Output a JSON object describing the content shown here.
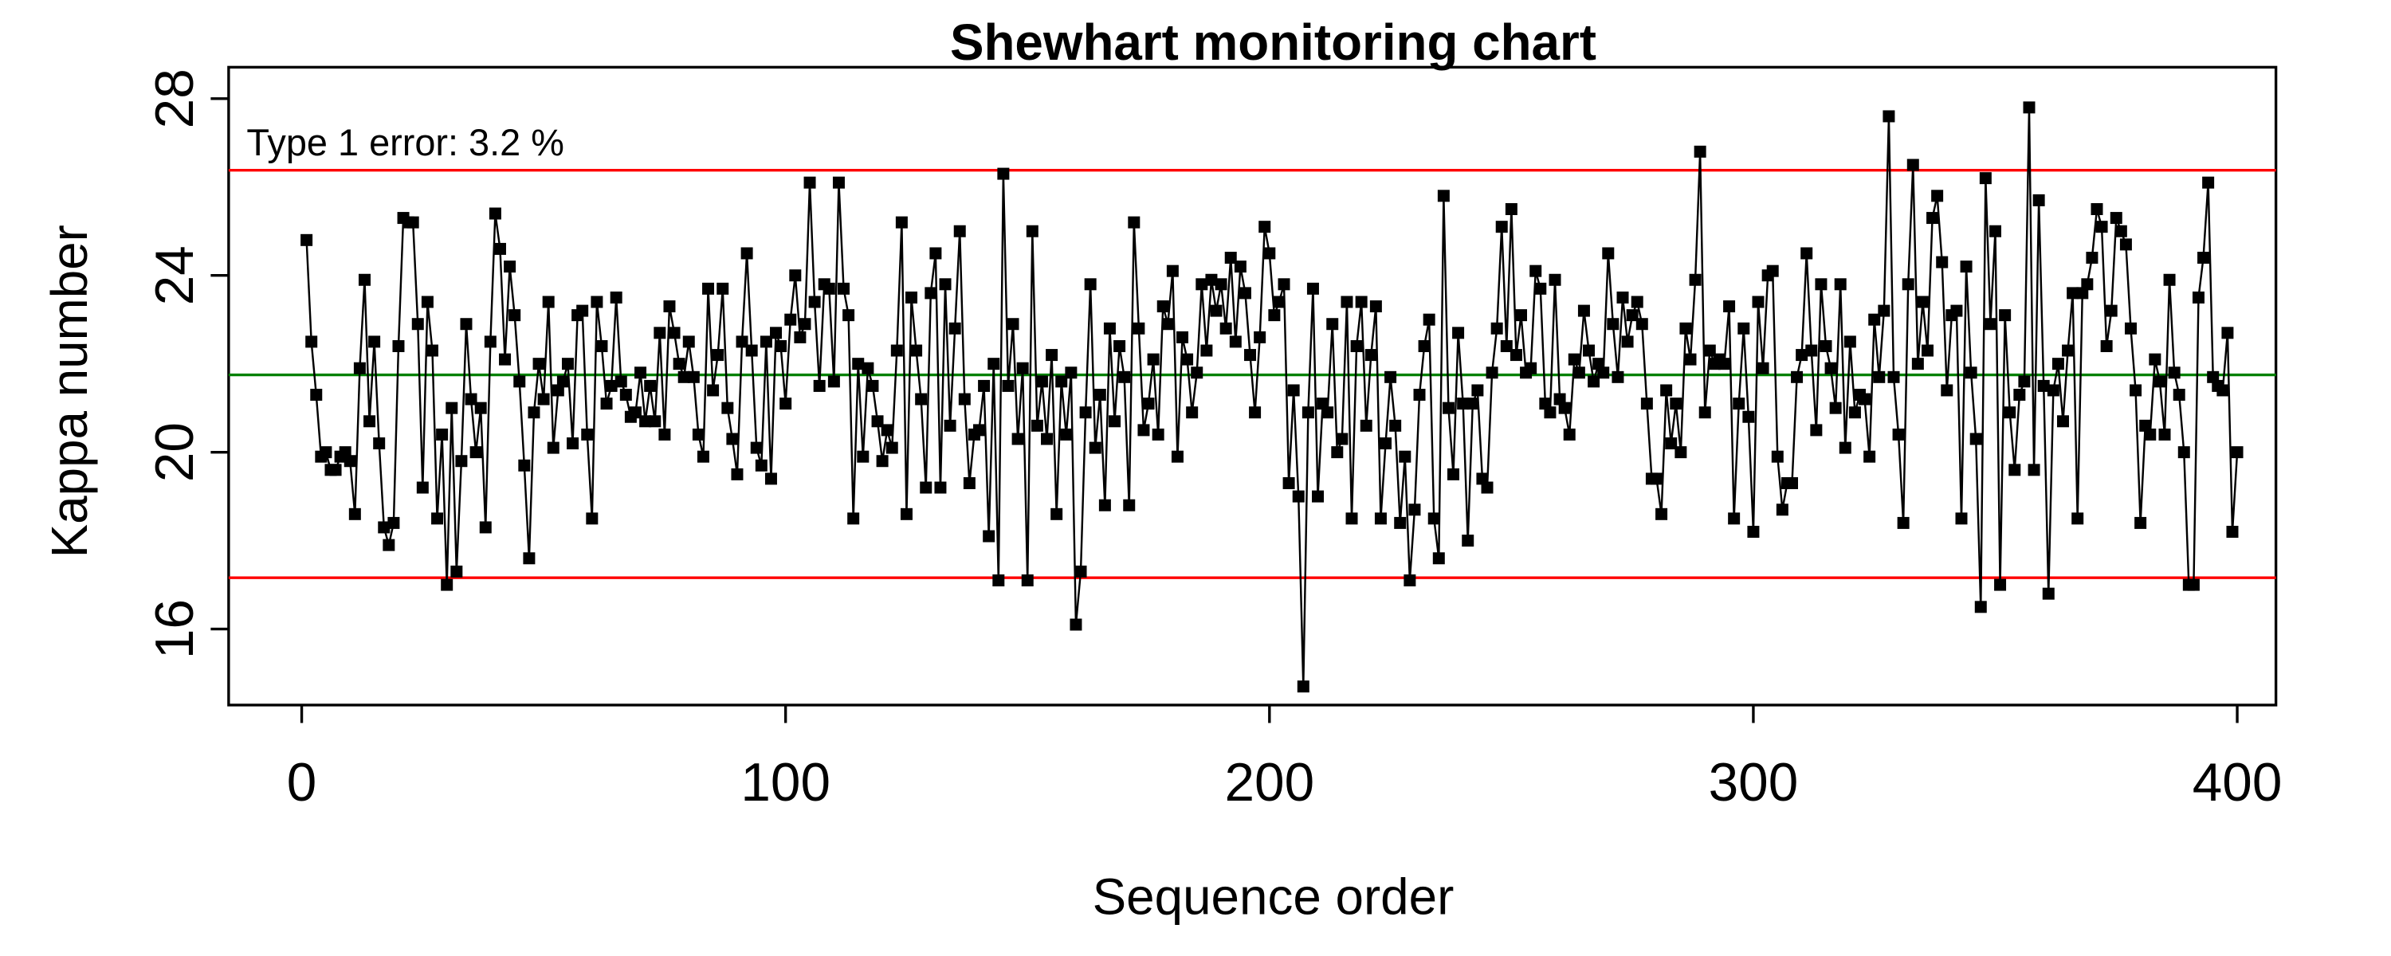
{
  "chart_data": {
    "type": "line",
    "title": "Shewhart monitoring chart",
    "x_label": "Sequence order",
    "y_label": "Kappa number",
    "annotation": "Type 1 error:  3.2 %",
    "xlim": [
      -15.1,
      408.0
    ],
    "xticks": [
      0,
      100,
      200,
      300,
      400
    ],
    "ylim": [
      14.28,
      28.71
    ],
    "yticks": [
      16,
      20,
      24,
      28
    ],
    "center_line": 21.75,
    "center_color": "#008000",
    "ucl": 26.38,
    "lcl": 17.16,
    "limit_color": "#ff0000",
    "color": "#000000",
    "x": [
      1,
      2,
      3,
      4,
      5,
      6,
      7,
      8,
      9,
      10,
      11,
      12,
      13,
      14,
      15,
      16,
      17,
      18,
      19,
      20,
      21,
      22,
      23,
      24,
      25,
      26,
      27,
      28,
      29,
      30,
      31,
      32,
      33,
      34,
      35,
      36,
      37,
      38,
      39,
      40,
      41,
      42,
      43,
      44,
      45,
      46,
      47,
      48,
      49,
      50,
      51,
      52,
      53,
      54,
      55,
      56,
      57,
      58,
      59,
      60,
      61,
      62,
      63,
      64,
      65,
      66,
      67,
      68,
      69,
      70,
      71,
      72,
      73,
      74,
      75,
      76,
      77,
      78,
      79,
      80,
      81,
      82,
      83,
      84,
      85,
      86,
      87,
      88,
      89,
      90,
      91,
      92,
      93,
      94,
      95,
      96,
      97,
      98,
      99,
      100,
      101,
      102,
      103,
      104,
      105,
      106,
      107,
      108,
      109,
      110,
      111,
      112,
      113,
      114,
      115,
      116,
      117,
      118,
      119,
      120,
      121,
      122,
      123,
      124,
      125,
      126,
      127,
      128,
      129,
      130,
      131,
      132,
      133,
      134,
      135,
      136,
      137,
      138,
      139,
      140,
      141,
      142,
      143,
      144,
      145,
      146,
      147,
      148,
      149,
      150,
      151,
      152,
      153,
      154,
      155,
      156,
      157,
      158,
      159,
      160,
      161,
      162,
      163,
      164,
      165,
      166,
      167,
      168,
      169,
      170,
      171,
      172,
      173,
      174,
      175,
      176,
      177,
      178,
      179,
      180,
      181,
      182,
      183,
      184,
      185,
      186,
      187,
      188,
      189,
      190,
      191,
      192,
      193,
      194,
      195,
      196,
      197,
      198,
      199,
      200,
      201,
      202,
      203,
      204,
      205,
      206,
      207,
      208,
      209,
      210,
      211,
      212,
      213,
      214,
      215,
      216,
      217,
      218,
      219,
      220,
      221,
      222,
      223,
      224,
      225,
      226,
      227,
      228,
      229,
      230,
      231,
      232,
      233,
      234,
      235,
      236,
      237,
      238,
      239,
      240,
      241,
      242,
      243,
      244,
      245,
      246,
      247,
      248,
      249,
      250,
      251,
      252,
      253,
      254,
      255,
      256,
      257,
      258,
      259,
      260,
      261,
      262,
      263,
      264,
      265,
      266,
      267,
      268,
      269,
      270,
      271,
      272,
      273,
      274,
      275,
      276,
      277,
      278,
      279,
      280,
      281,
      282,
      283,
      284,
      285,
      286,
      287,
      288,
      289,
      290,
      291,
      292,
      293,
      294,
      295,
      296,
      297,
      298,
      299,
      300,
      301,
      302,
      303,
      304,
      305,
      306,
      307,
      308,
      309,
      310,
      311,
      312,
      313,
      314,
      315,
      316,
      317,
      318,
      319,
      320,
      321,
      322,
      323,
      324,
      325,
      326,
      327,
      328,
      329,
      330,
      331,
      332,
      333,
      334,
      335,
      336,
      337,
      338,
      339,
      340,
      341,
      342,
      343,
      344,
      345,
      346,
      347,
      348,
      349,
      350,
      351,
      352,
      353,
      354,
      355,
      356,
      357,
      358,
      359,
      360,
      361,
      362,
      363,
      364,
      365,
      366,
      367,
      368,
      369,
      370,
      371,
      372,
      373,
      374,
      375,
      376,
      377,
      378,
      379,
      380,
      381,
      382,
      383,
      384,
      385,
      386,
      387,
      388,
      389,
      390,
      391,
      392,
      393,
      394,
      395,
      396,
      397,
      398,
      399,
      400
    ],
    "values": [
      24.8,
      22.5,
      21.3,
      19.9,
      20.0,
      19.6,
      19.6,
      19.9,
      20.0,
      19.8,
      18.6,
      21.9,
      23.9,
      20.7,
      22.5,
      20.2,
      18.3,
      17.9,
      18.4,
      22.4,
      25.3,
      25.2,
      25.2,
      22.9,
      19.2,
      23.4,
      22.3,
      18.5,
      20.4,
      17.0,
      21.0,
      17.3,
      19.8,
      22.9,
      21.2,
      20.0,
      21.0,
      18.3,
      22.5,
      25.4,
      24.6,
      22.1,
      24.2,
      23.1,
      21.6,
      19.7,
      17.6,
      20.9,
      22.0,
      21.2,
      23.4,
      20.1,
      21.4,
      21.6,
      22.0,
      20.2,
      23.1,
      23.2,
      20.4,
      18.5,
      23.4,
      22.4,
      21.1,
      21.5,
      23.5,
      21.6,
      21.3,
      20.8,
      20.9,
      21.8,
      20.7,
      21.5,
      20.7,
      22.7,
      20.4,
      23.3,
      22.7,
      22.0,
      21.7,
      22.5,
      21.7,
      20.4,
      19.9,
      23.7,
      21.4,
      22.2,
      23.7,
      21.0,
      20.3,
      19.5,
      22.5,
      24.5,
      22.3,
      20.1,
      19.7,
      22.5,
      19.4,
      22.7,
      22.4,
      21.1,
      23.0,
      24.0,
      22.6,
      22.9,
      26.1,
      23.4,
      21.5,
      23.8,
      23.7,
      21.6,
      26.1,
      23.7,
      23.1,
      18.5,
      22.0,
      19.9,
      21.9,
      21.5,
      20.7,
      19.8,
      20.5,
      20.1,
      22.3,
      25.2,
      18.6,
      23.5,
      22.3,
      21.2,
      19.2,
      23.6,
      24.5,
      19.2,
      23.8,
      20.6,
      22.8,
      25.0,
      21.2,
      19.3,
      20.4,
      20.5,
      21.5,
      18.1,
      22.0,
      17.1,
      26.3,
      21.5,
      22.9,
      20.3,
      21.9,
      17.1,
      25.0,
      20.6,
      21.6,
      20.3,
      22.2,
      18.6,
      21.6,
      20.4,
      21.8,
      16.1,
      17.3,
      20.9,
      23.8,
      20.1,
      21.3,
      18.8,
      22.8,
      20.7,
      22.4,
      21.7,
      18.8,
      25.2,
      22.8,
      20.5,
      21.1,
      22.1,
      20.4,
      23.3,
      22.9,
      24.1,
      19.9,
      22.6,
      22.1,
      20.9,
      21.8,
      23.8,
      22.3,
      23.9,
      23.2,
      23.8,
      22.8,
      24.4,
      22.5,
      24.2,
      23.6,
      22.2,
      20.9,
      22.6,
      25.1,
      24.5,
      23.1,
      23.4,
      23.8,
      19.3,
      21.4,
      19.0,
      14.7,
      20.9,
      23.7,
      19.0,
      21.1,
      20.9,
      22.9,
      20.0,
      20.3,
      23.4,
      18.5,
      22.4,
      23.4,
      20.6,
      22.2,
      23.3,
      18.5,
      20.2,
      21.7,
      20.6,
      18.4,
      19.9,
      17.1,
      18.7,
      21.3,
      22.4,
      23.0,
      18.5,
      17.6,
      25.8,
      21.0,
      19.5,
      22.7,
      21.1,
      18.0,
      21.1,
      21.4,
      19.4,
      19.2,
      21.8,
      22.8,
      25.1,
      22.4,
      25.5,
      22.2,
      23.1,
      21.8,
      21.9,
      24.1,
      23.7,
      21.1,
      20.9,
      23.9,
      21.2,
      21.0,
      20.4,
      22.1,
      21.8,
      23.2,
      22.3,
      21.6,
      22.0,
      21.8,
      24.5,
      22.9,
      21.7,
      23.5,
      22.5,
      23.1,
      23.4,
      22.9,
      21.1,
      19.4,
      19.4,
      18.6,
      21.4,
      20.2,
      21.1,
      20.0,
      22.8,
      22.1,
      23.9,
      26.8,
      20.9,
      22.3,
      22.0,
      22.1,
      22.0,
      23.3,
      18.5,
      21.1,
      22.8,
      20.8,
      18.2,
      23.4,
      21.9,
      24.0,
      24.1,
      19.9,
      18.7,
      19.3,
      19.3,
      21.7,
      22.2,
      24.5,
      22.3,
      20.5,
      23.8,
      22.4,
      21.9,
      21.0,
      23.8,
      20.1,
      22.5,
      20.9,
      21.3,
      21.2,
      19.9,
      23.0,
      21.7,
      23.2,
      27.6,
      21.7,
      20.4,
      18.4,
      23.8,
      26.5,
      22.0,
      23.4,
      22.3,
      25.3,
      25.8,
      24.3,
      21.4,
      23.1,
      23.2,
      18.5,
      24.2,
      21.8,
      20.3,
      16.5,
      26.2,
      22.9,
      25.0,
      17.0,
      23.1,
      20.9,
      19.6,
      21.3,
      21.6,
      27.8,
      19.6,
      25.7,
      21.5,
      16.8,
      21.4,
      22.0,
      20.7,
      22.3,
      23.6,
      18.5,
      23.6,
      23.8,
      24.4,
      25.5,
      25.1,
      22.4,
      23.2,
      25.3,
      25.0,
      24.7,
      22.8,
      21.4,
      18.4,
      20.6,
      20.4,
      22.1,
      21.6,
      20.4,
      23.9,
      21.8,
      21.3,
      20.0,
      17.0,
      17.0,
      23.5,
      24.4,
      26.1,
      21.7,
      21.5,
      21.4,
      22.7,
      18.2,
      20.0
    ]
  }
}
